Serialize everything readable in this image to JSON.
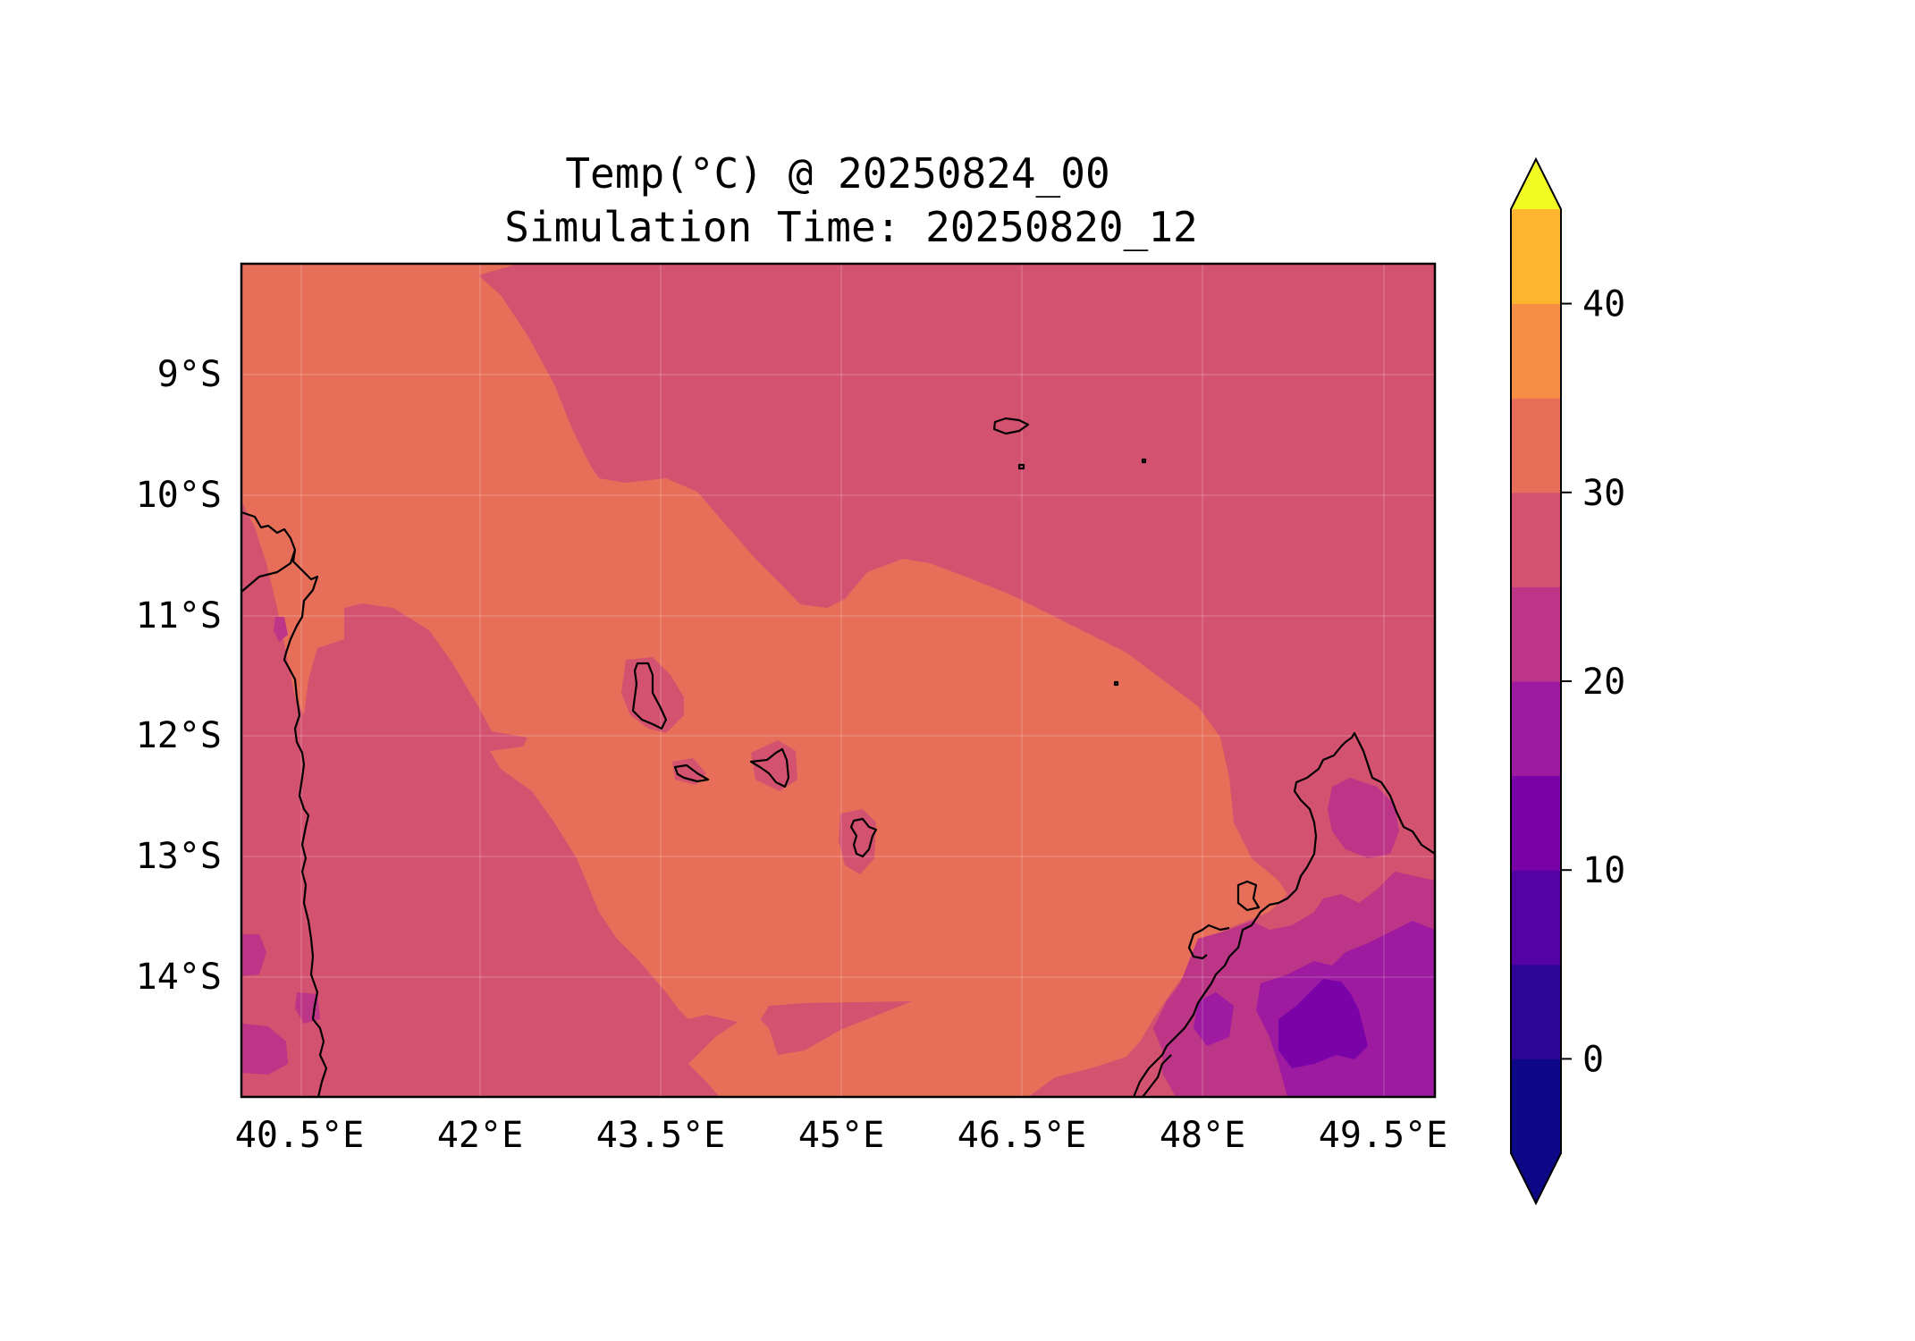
{
  "title": {
    "line1": "Temp(°C) @ 20250824_00",
    "line2": "Simulation Time: 20250820_12"
  },
  "map": {
    "lon_ticks": [
      "40.5°E",
      "42°E",
      "43.5°E",
      "45°E",
      "46.5°E",
      "48°E",
      "49.5°E"
    ],
    "lat_ticks": [
      "9°S",
      "10°S",
      "11°S",
      "12°S",
      "13°S",
      "14°S"
    ],
    "grid": true,
    "lon_range": [
      39.75,
      49.65
    ],
    "lat_range": [
      -14.95,
      -8.05
    ]
  },
  "colorbar": {
    "levels": [
      -5,
      0,
      5,
      10,
      15,
      20,
      25,
      30,
      35,
      40,
      45
    ],
    "colors": [
      "#0d0887",
      "#2c0594",
      "#5402a3",
      "#7a03a8",
      "#9e1aa0",
      "#bc3587",
      "#d35270",
      "#e76f5a",
      "#f68d45",
      "#fdb42f",
      "#f5e528"
    ],
    "extend_low_color": "#0d0887",
    "extend_high_color": "#f0f921",
    "tick_values": [
      0,
      10,
      20,
      30,
      40
    ],
    "tick_labels": [
      "0",
      "10",
      "20",
      "30",
      "40"
    ]
  }
}
